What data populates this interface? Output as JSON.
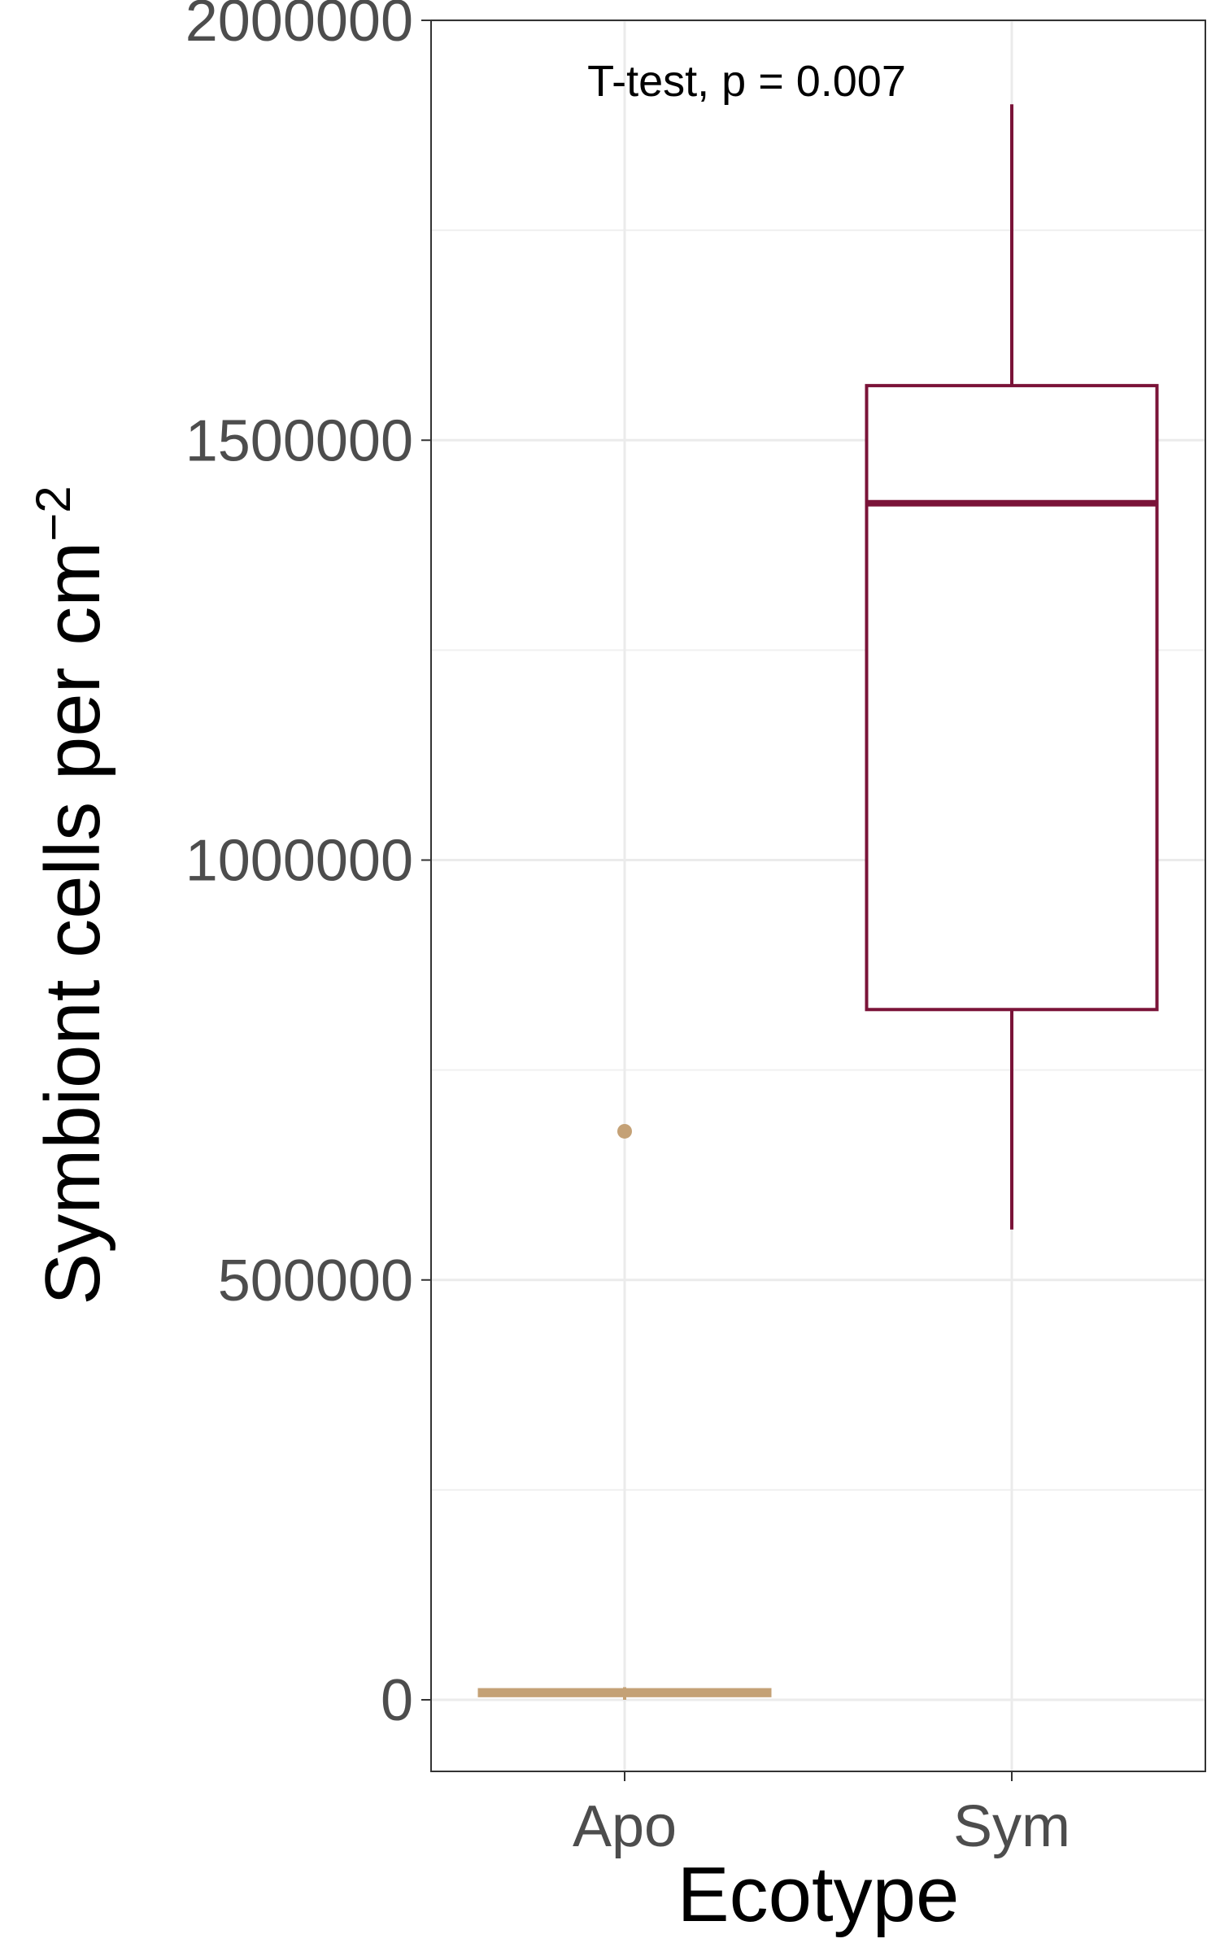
{
  "chart_data": {
    "type": "boxplot",
    "annotation": "T-test, p = 0.007",
    "xlabel": "Ecotype",
    "ylabel": "Symbiont cells per cm",
    "ylabel_superscript": "−2",
    "ylim": [
      -90000,
      2000000
    ],
    "yticks": [
      0,
      500000,
      1000000,
      1500000,
      2000000
    ],
    "ytick_labels": [
      "0",
      "500000",
      "1000000",
      "1500000",
      "2000000"
    ],
    "grid": true,
    "categories": [
      "Apo",
      "Sym"
    ],
    "series": [
      {
        "category": "Apo",
        "color": "#c4a176",
        "min": 0,
        "q1": 5000,
        "median": 8000,
        "q3": 12000,
        "max": 15000,
        "outliers": [
          677000
        ]
      },
      {
        "category": "Sym",
        "color": "#7a1338",
        "min": 560000,
        "q1": 822000,
        "median": 1425000,
        "q3": 1565000,
        "max": 1900000,
        "outliers": []
      }
    ]
  }
}
